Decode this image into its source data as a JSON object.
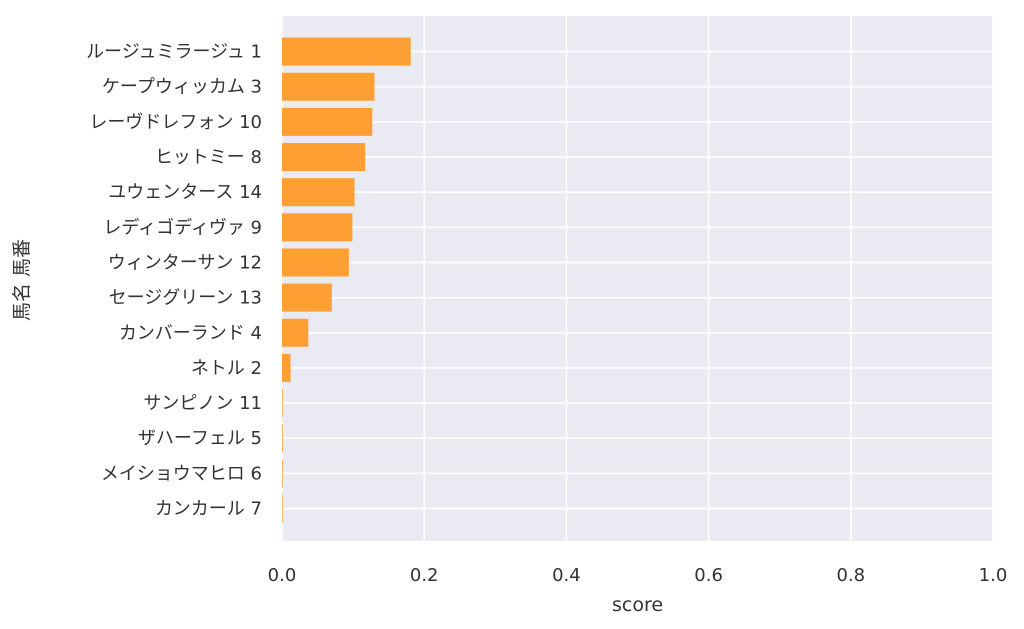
{
  "chart_data": {
    "type": "bar",
    "orientation": "horizontal",
    "xlabel": "score",
    "ylabel": "馬名 馬番",
    "xlim": [
      0.0,
      1.0
    ],
    "xticks": [
      "0.0",
      "0.2",
      "0.4",
      "0.6",
      "0.8",
      "1.0"
    ],
    "grid": true,
    "bar_color": "#fd9f33",
    "background_color": "#eaeaf2",
    "categories": [
      "ルージュミラージュ 1",
      "ケープウィッカム 3",
      "レーヴドレフォン 10",
      "ヒットミー 8",
      "ユウェンタース 14",
      "レディゴディヴァ 9",
      "ウィンターサン 12",
      "セージグリーン 13",
      "カンバーランド 4",
      "ネトル 2",
      "サンピノン 11",
      "ザハーフェル 5",
      "メイショウマヒロ 6",
      "カンカール 7"
    ],
    "values": [
      0.181,
      0.13,
      0.127,
      0.117,
      0.102,
      0.099,
      0.094,
      0.07,
      0.037,
      0.012,
      0.001,
      0.001,
      0.001,
      0.001
    ]
  }
}
